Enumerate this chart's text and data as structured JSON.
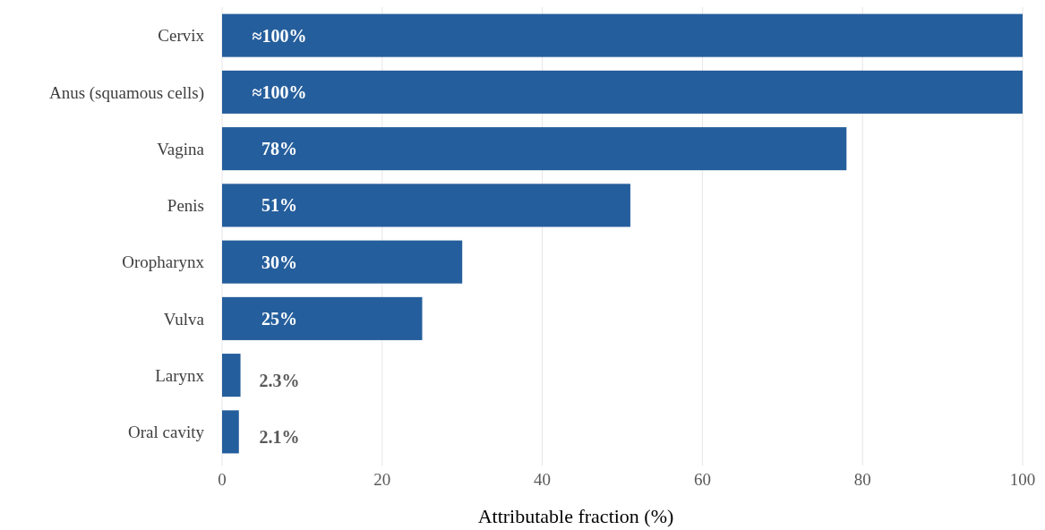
{
  "chart_data": {
    "type": "bar",
    "orientation": "horizontal",
    "xlabel": "Attributable fraction (%)",
    "categories": [
      "Cervix",
      "Anus (squamous cells)",
      "Vagina",
      "Penis",
      "Oropharynx",
      "Vulva",
      "Larynx",
      "Oral cavity"
    ],
    "values": [
      100,
      100,
      78,
      51,
      30,
      25,
      2.3,
      2.1
    ],
    "value_labels": [
      "≈100%",
      "≈100%",
      "78%",
      "51%",
      "30%",
      "25%",
      "2.3%",
      "2.1%"
    ],
    "color": "#255e9c",
    "xlim": [
      0,
      100
    ],
    "xticks": [
      0,
      20,
      40,
      60,
      80,
      100
    ],
    "grid": "x"
  }
}
